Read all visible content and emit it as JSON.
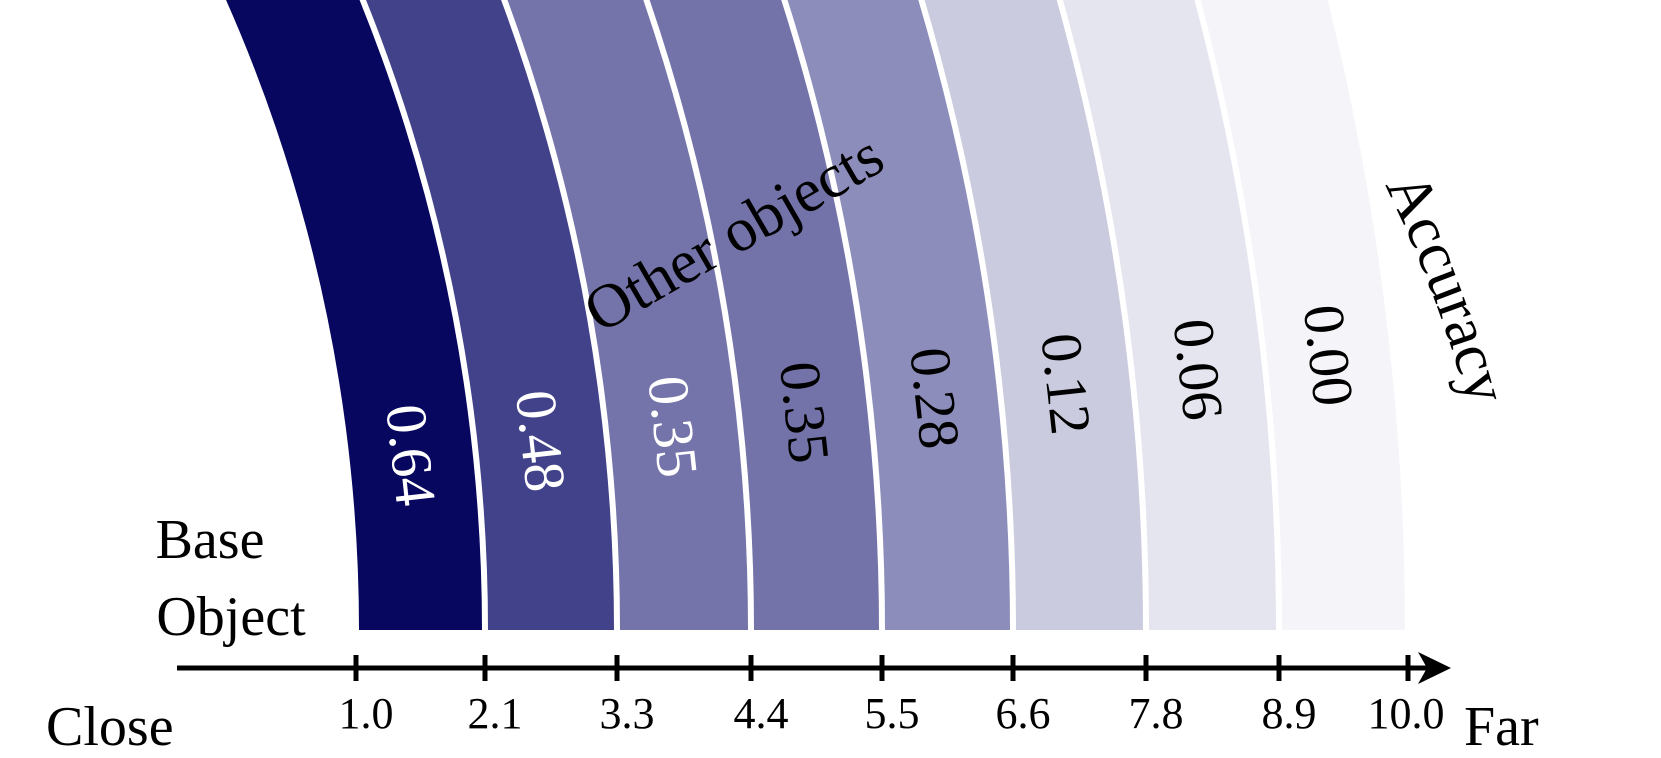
{
  "chart_data": {
    "type": "bar",
    "x_ticks": [
      "1.0",
      "2.1",
      "3.3",
      "4.4",
      "5.5",
      "6.6",
      "7.8",
      "8.9",
      "10.0"
    ],
    "values": [
      "0.64",
      "0.48",
      "0.35",
      "0.35",
      "0.28",
      "0.12",
      "0.06",
      "0.00"
    ],
    "colors": [
      "#07075f",
      "#42428a",
      "#7474aa",
      "#7373a9",
      "#8d8dbb",
      "#cbcbdf",
      "#e5e5f0",
      "#f5f5f9"
    ],
    "label_colors": [
      "#ffffff",
      "#ffffff",
      "#ffffff",
      "#000000",
      "#000000",
      "#000000",
      "#000000",
      "#000000"
    ],
    "xlabel_left": "Close",
    "xlabel_right": "Far",
    "base_label": [
      "Base",
      "Object"
    ],
    "top_label": "Other objects",
    "right_label": "Accuracy"
  }
}
